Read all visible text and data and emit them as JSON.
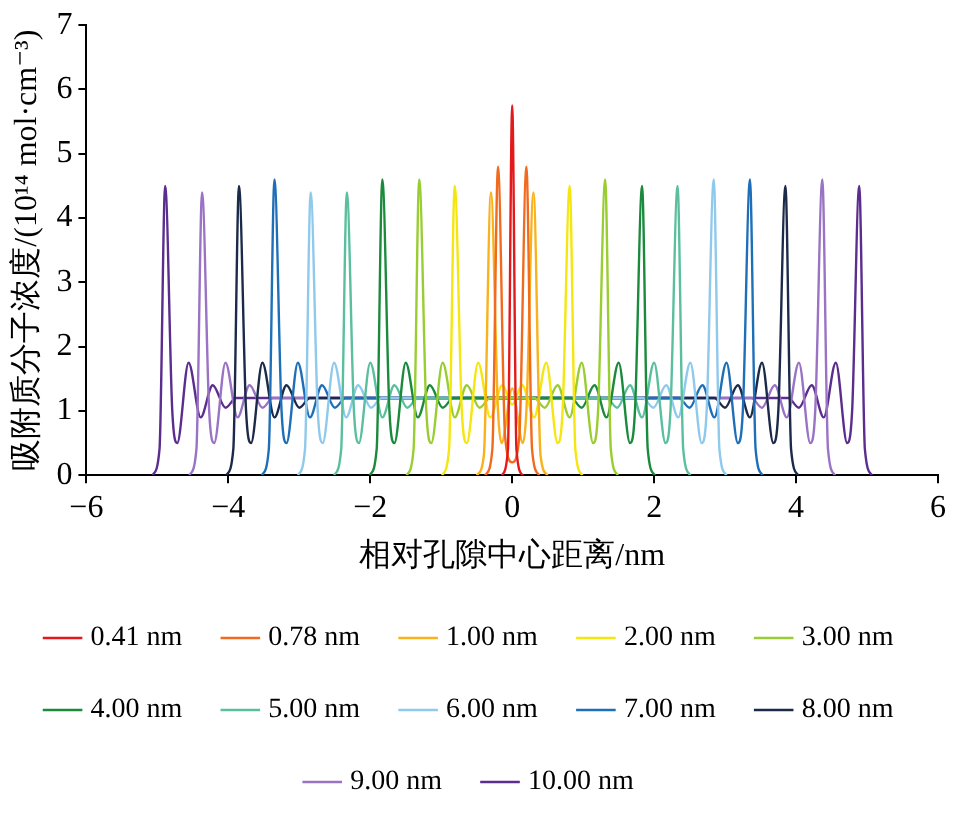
{
  "chart_data": {
    "type": "line",
    "xlabel": "相对孔隙中心距离/nm",
    "ylabel": "吸附质分子浓度/(10¹⁴ mol·cm⁻³)",
    "xlim": [
      -6,
      6
    ],
    "xticks": [
      -6,
      -4,
      -2,
      0,
      2,
      4,
      6
    ],
    "ylim": [
      0,
      7
    ],
    "yticks": [
      0,
      1,
      2,
      3,
      4,
      5,
      6,
      7
    ],
    "grid": false,
    "legend": "bottom",
    "marker": "none",
    "line_style": "solid",
    "series": [
      {
        "name": "0.41 nm",
        "color": "#e31a1c",
        "x": [
          -0.15,
          -0.06,
          0,
          0.06,
          0.15
        ],
        "values": [
          0,
          0.4,
          5.75,
          0.4,
          0
        ]
      },
      {
        "name": "0.78 nm",
        "color": "#f06a1f",
        "x": [
          -0.38,
          -0.28,
          -0.2,
          -0.1,
          0,
          0.1,
          0.2,
          0.28,
          0.38
        ],
        "values": [
          0,
          0.4,
          4.8,
          0.6,
          0.2,
          0.6,
          4.8,
          0.4,
          0
        ]
      },
      {
        "name": "1.00 nm",
        "color": "#f9b21b",
        "x": [
          -0.5,
          -0.4,
          -0.3,
          -0.2,
          -0.15,
          0,
          0.15,
          0.2,
          0.3,
          0.4,
          0.5
        ],
        "values": [
          0,
          0.3,
          4.4,
          1.0,
          0.5,
          1.35,
          0.5,
          1.0,
          4.4,
          0.3,
          0
        ]
      },
      {
        "name": "2.00 nm",
        "color": "#f5e60f",
        "x": [
          -0.99,
          -0.89,
          -0.81,
          -0.71,
          -0.64,
          -0.48,
          -0.31,
          -0.14,
          0,
          0.14,
          0.31,
          0.48,
          0.64,
          0.71,
          0.81,
          0.89,
          0.99
        ],
        "values": [
          0,
          0.4,
          4.5,
          1.0,
          0.5,
          1.75,
          0.9,
          1.4,
          1.1,
          1.4,
          0.9,
          1.75,
          0.5,
          1.0,
          4.5,
          0.4,
          0
        ]
      },
      {
        "name": "3.00 nm",
        "color": "#9acd32",
        "x": [
          -1.49,
          -1.39,
          -1.31,
          -1.21,
          -1.14,
          -0.98,
          -0.81,
          -0.64,
          -0.46,
          -0.31,
          0.31,
          0.46,
          0.64,
          0.81,
          0.98,
          1.14,
          1.21,
          1.31,
          1.39,
          1.49
        ],
        "values": [
          0,
          0.4,
          4.6,
          1.0,
          0.5,
          1.75,
          0.9,
          1.4,
          1.05,
          1.2,
          1.2,
          1.05,
          1.4,
          0.9,
          1.75,
          0.5,
          1.0,
          4.6,
          0.4,
          0
        ]
      },
      {
        "name": "4.00 nm",
        "color": "#1b8a3c",
        "x": [
          -2.01,
          -1.91,
          -1.83,
          -1.73,
          -1.66,
          -1.5,
          -1.33,
          -1.16,
          -0.98,
          -0.83,
          0.83,
          0.98,
          1.16,
          1.33,
          1.5,
          1.66,
          1.73,
          1.83,
          1.91,
          2.01
        ],
        "values": [
          0,
          0.4,
          4.6,
          1.0,
          0.5,
          1.75,
          0.9,
          1.4,
          1.05,
          1.2,
          1.2,
          1.05,
          1.4,
          0.9,
          1.75,
          0.5,
          1.0,
          4.5,
          0.4,
          0
        ]
      },
      {
        "name": "5.00 nm",
        "color": "#5bbf9f",
        "x": [
          -2.51,
          -2.41,
          -2.33,
          -2.23,
          -2.16,
          -2.0,
          -1.83,
          -1.66,
          -1.48,
          -1.33,
          1.33,
          1.48,
          1.66,
          1.83,
          2.0,
          2.16,
          2.23,
          2.33,
          2.41,
          2.51
        ],
        "values": [
          0,
          0.4,
          4.4,
          1.0,
          0.5,
          1.75,
          0.9,
          1.4,
          1.05,
          1.2,
          1.2,
          1.05,
          1.4,
          0.9,
          1.75,
          0.5,
          1.0,
          4.5,
          0.4,
          0
        ]
      },
      {
        "name": "6.00 nm",
        "color": "#8fc9ec",
        "x": [
          -3.02,
          -2.92,
          -2.84,
          -2.74,
          -2.67,
          -2.51,
          -2.34,
          -2.17,
          -1.99,
          -1.84,
          1.84,
          1.99,
          2.17,
          2.34,
          2.51,
          2.67,
          2.74,
          2.84,
          2.92,
          3.02
        ],
        "values": [
          0,
          0.4,
          4.4,
          1.0,
          0.5,
          1.75,
          0.9,
          1.4,
          1.05,
          1.2,
          1.2,
          1.05,
          1.4,
          0.9,
          1.75,
          0.5,
          1.0,
          4.6,
          0.4,
          0
        ]
      },
      {
        "name": "7.00 nm",
        "color": "#1f6fb8",
        "x": [
          -3.53,
          -3.43,
          -3.35,
          -3.25,
          -3.18,
          -3.02,
          -2.85,
          -2.68,
          -2.5,
          -2.35,
          2.35,
          2.5,
          2.68,
          2.85,
          3.02,
          3.18,
          3.25,
          3.35,
          3.43,
          3.53
        ],
        "values": [
          0,
          0.4,
          4.6,
          1.0,
          0.5,
          1.75,
          0.9,
          1.4,
          1.05,
          1.2,
          1.2,
          1.05,
          1.4,
          0.9,
          1.75,
          0.5,
          1.0,
          4.6,
          0.4,
          0
        ]
      },
      {
        "name": "8.00 nm",
        "color": "#1c2a4a",
        "x": [
          -4.03,
          -3.93,
          -3.85,
          -3.75,
          -3.68,
          -3.52,
          -3.35,
          -3.18,
          -3.0,
          -2.85,
          2.85,
          3.0,
          3.18,
          3.35,
          3.52,
          3.68,
          3.75,
          3.85,
          3.93,
          4.03
        ],
        "values": [
          0,
          0.4,
          4.5,
          1.0,
          0.5,
          1.75,
          0.9,
          1.4,
          1.05,
          1.2,
          1.2,
          1.05,
          1.4,
          0.9,
          1.75,
          0.5,
          1.0,
          4.5,
          0.4,
          0
        ]
      },
      {
        "name": "9.00 nm",
        "color": "#9a73c4",
        "x": [
          -4.55,
          -4.45,
          -4.37,
          -4.27,
          -4.2,
          -4.04,
          -3.87,
          -3.7,
          -3.52,
          -3.37,
          3.37,
          3.52,
          3.7,
          3.87,
          4.04,
          4.2,
          4.27,
          4.37,
          4.45,
          4.55
        ],
        "values": [
          0,
          0.4,
          4.4,
          1.0,
          0.5,
          1.75,
          0.9,
          1.4,
          1.05,
          1.2,
          1.2,
          1.05,
          1.4,
          0.9,
          1.75,
          0.5,
          1.0,
          4.6,
          0.4,
          0
        ]
      },
      {
        "name": "10.00 nm",
        "color": "#5b2d8e",
        "x": [
          -5.07,
          -4.97,
          -4.89,
          -4.79,
          -4.72,
          -4.56,
          -4.39,
          -4.22,
          -4.04,
          -3.89,
          3.89,
          4.04,
          4.22,
          4.39,
          4.56,
          4.72,
          4.79,
          4.89,
          4.97,
          5.07
        ],
        "values": [
          0,
          0.4,
          4.5,
          1.0,
          0.5,
          1.75,
          0.9,
          1.4,
          1.05,
          1.2,
          1.2,
          1.05,
          1.4,
          0.9,
          1.75,
          0.5,
          1.0,
          4.5,
          0.4,
          0
        ]
      }
    ]
  }
}
